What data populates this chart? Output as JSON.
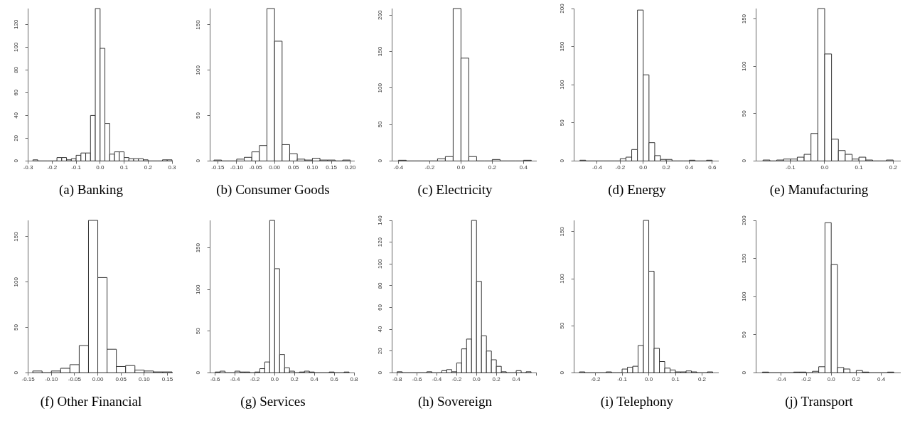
{
  "chart_data": [
    {
      "type": "histogram",
      "title": "(a) Banking",
      "bins": [
        -0.28,
        -0.26,
        -0.24,
        -0.22,
        -0.2,
        -0.18,
        -0.16,
        -0.14,
        -0.12,
        -0.1,
        -0.08,
        -0.06,
        -0.04,
        -0.02,
        0,
        0.02,
        0.04,
        0.06,
        0.08,
        0.1,
        0.12,
        0.14,
        0.16,
        0.18,
        0.2,
        0.22,
        0.24,
        0.26,
        0.28,
        0.3
      ],
      "values": [
        1,
        0,
        0,
        0,
        0,
        3,
        3,
        1,
        2,
        5,
        7,
        7,
        40,
        134,
        99,
        33,
        6,
        8,
        8,
        3,
        2,
        2,
        2,
        1,
        0,
        0,
        0,
        1,
        1
      ],
      "xlim": [
        -0.3,
        0.3
      ],
      "xticks": [
        -0.3,
        -0.2,
        -0.1,
        {
          "value": 0,
          "label": "0.0"
        },
        0.1,
        0.2,
        0.3
      ],
      "ylim": [
        0,
        134
      ],
      "yticks": [
        0,
        20,
        40,
        60,
        80,
        100,
        120
      ]
    },
    {
      "type": "histogram",
      "title": "(b) Consumer Goods",
      "bins": [
        -0.16,
        -0.14,
        -0.12,
        -0.1,
        -0.08,
        -0.06,
        -0.04,
        -0.02,
        0,
        0.02,
        0.04,
        0.06,
        0.08,
        0.1,
        0.12,
        0.14,
        0.16,
        0.18,
        0.2
      ],
      "values": [
        1,
        0,
        0,
        2,
        4,
        10,
        17,
        168,
        132,
        18,
        8,
        2,
        1,
        3,
        1,
        1,
        0,
        1
      ],
      "xlim": [
        -0.17,
        0.21
      ],
      "xticks": [
        -0.15,
        {
          "value": -0.1,
          "label": "-0.10"
        },
        -0.05,
        {
          "value": 0,
          "label": "0.00"
        },
        0.05,
        {
          "value": 0.1,
          "label": "0.10"
        },
        0.15,
        {
          "value": 0.2,
          "label": "0.20"
        }
      ],
      "ylim": [
        0,
        168
      ],
      "yticks": [
        0,
        50,
        100,
        150
      ]
    },
    {
      "type": "histogram",
      "title": "(c) Electricity",
      "bins": [
        -0.4,
        -0.35,
        -0.3,
        -0.25,
        -0.2,
        -0.15,
        -0.1,
        -0.05,
        0,
        0.05,
        0.1,
        0.15,
        0.2,
        0.25,
        0.3,
        0.35,
        0.4,
        0.45
      ],
      "values": [
        1,
        0,
        0,
        0,
        0,
        3,
        6,
        209,
        141,
        6,
        0,
        0,
        2,
        0,
        0,
        0,
        1
      ],
      "xlim": [
        -0.44,
        0.48
      ],
      "xticks": [
        -0.4,
        -0.2,
        {
          "value": 0,
          "label": "0.0"
        },
        0.2,
        0.4
      ],
      "ylim": [
        0,
        209
      ],
      "yticks": [
        0,
        50,
        100,
        150,
        200
      ]
    },
    {
      "type": "histogram",
      "title": "(d) Energy",
      "bins": [
        -0.55,
        -0.5,
        -0.45,
        -0.4,
        -0.35,
        -0.3,
        -0.25,
        -0.2,
        -0.15,
        -0.1,
        -0.05,
        0,
        0.05,
        0.1,
        0.15,
        0.2,
        0.25,
        0.3,
        0.35,
        0.4,
        0.45,
        0.5,
        0.55,
        0.6
      ],
      "values": [
        1,
        0,
        0,
        0,
        0,
        0,
        0,
        3,
        5,
        15,
        198,
        113,
        24,
        7,
        2,
        2,
        0,
        0,
        0,
        1,
        0,
        0,
        1
      ],
      "xlim": [
        -0.6,
        0.65
      ],
      "xticks": [
        -0.4,
        -0.2,
        {
          "value": 0,
          "label": "0.0"
        },
        0.2,
        0.4,
        0.6
      ],
      "ylim": [
        0,
        200
      ],
      "yticks": [
        0,
        50,
        100,
        150,
        200
      ]
    },
    {
      "type": "histogram",
      "title": "(e) Manufacturing",
      "bins": [
        -0.18,
        -0.16,
        -0.14,
        -0.12,
        -0.1,
        -0.08,
        -0.06,
        -0.04,
        -0.02,
        0,
        0.02,
        0.04,
        0.06,
        0.08,
        0.1,
        0.12,
        0.14,
        0.16,
        0.18,
        0.2
      ],
      "values": [
        1,
        0,
        1,
        2,
        2,
        4,
        7,
        29,
        161,
        113,
        23,
        11,
        7,
        2,
        4,
        1,
        0,
        0,
        1
      ],
      "xlim": [
        -0.2,
        0.22
      ],
      "xticks": [
        -0.1,
        {
          "value": 0,
          "label": "0.0"
        },
        0.1,
        0.2
      ],
      "ylim": [
        0,
        161
      ],
      "yticks": [
        0,
        50,
        100,
        150
      ]
    },
    {
      "type": "histogram",
      "title": "(f) Other Financial",
      "bins": [
        -0.14,
        -0.12,
        -0.1,
        -0.08,
        -0.06,
        -0.04,
        -0.02,
        0,
        0.02,
        0.04,
        0.06,
        0.08,
        0.1,
        0.12,
        0.14,
        0.16
      ],
      "values": [
        2,
        0,
        2,
        5,
        9,
        30,
        168,
        105,
        26,
        7,
        8,
        3,
        2,
        1,
        1
      ],
      "xlim": [
        -0.15,
        0.16
      ],
      "xticks": [
        -0.15,
        {
          "value": -0.1,
          "label": "-0.10"
        },
        -0.05,
        {
          "value": 0,
          "label": "0.00"
        },
        0.05,
        {
          "value": 0.1,
          "label": "0.10"
        },
        0.15
      ],
      "ylim": [
        0,
        168
      ],
      "yticks": [
        0,
        50,
        100,
        150
      ]
    },
    {
      "type": "histogram",
      "title": "(g) Services",
      "bins": [
        -0.6,
        -0.55,
        -0.5,
        -0.45,
        -0.4,
        -0.35,
        -0.3,
        -0.25,
        -0.2,
        -0.15,
        -0.1,
        -0.05,
        0,
        0.05,
        0.1,
        0.15,
        0.2,
        0.25,
        0.3,
        0.35,
        0.4,
        0.45,
        0.5,
        0.55,
        0.6,
        0.65,
        0.7,
        0.75
      ],
      "values": [
        1,
        2,
        0,
        0,
        2,
        1,
        1,
        0,
        1,
        5,
        13,
        183,
        125,
        22,
        6,
        2,
        0,
        1,
        2,
        1,
        0,
        0,
        0,
        1,
        0,
        0,
        1
      ],
      "xlim": [
        -0.65,
        0.8
      ],
      "xticks": [
        -0.6,
        -0.4,
        -0.2,
        {
          "value": 0,
          "label": "0.0"
        },
        0.2,
        0.4,
        0.6,
        0.8
      ],
      "ylim": [
        0,
        183
      ],
      "yticks": [
        0,
        50,
        100,
        150
      ]
    },
    {
      "type": "histogram",
      "title": "(h) Sovereign",
      "bins": [
        -0.8,
        -0.75,
        -0.7,
        -0.65,
        -0.6,
        -0.55,
        -0.5,
        -0.45,
        -0.4,
        -0.35,
        -0.3,
        -0.25,
        -0.2,
        -0.15,
        -0.1,
        -0.05,
        0,
        0.05,
        0.1,
        0.15,
        0.2,
        0.25,
        0.3,
        0.35,
        0.4,
        0.45,
        0.5,
        0.55
      ],
      "values": [
        1,
        0,
        0,
        0,
        0,
        0,
        1,
        0,
        0,
        2,
        3,
        1,
        9,
        22,
        31,
        140,
        84,
        34,
        20,
        12,
        6,
        1,
        0,
        0,
        2,
        0,
        1
      ],
      "xlim": [
        -0.85,
        0.6
      ],
      "xticks": [
        -0.8,
        -0.6,
        -0.4,
        -0.2,
        {
          "value": 0,
          "label": "0.0"
        },
        0.2,
        0.4,
        {
          "value": 0.6,
          "label": null
        }
      ],
      "ylim": [
        0,
        140
      ],
      "yticks": [
        0,
        20,
        40,
        60,
        80,
        100,
        120,
        140
      ]
    },
    {
      "type": "histogram",
      "title": "(i) Telephony",
      "bins": [
        -0.26,
        -0.24,
        -0.22,
        -0.2,
        -0.18,
        -0.16,
        -0.14,
        -0.12,
        -0.1,
        -0.08,
        -0.06,
        -0.04,
        -0.02,
        0,
        0.02,
        0.04,
        0.06,
        0.08,
        0.1,
        0.12,
        0.14,
        0.16,
        0.18,
        0.2,
        0.22,
        0.24
      ],
      "values": [
        1,
        0,
        0,
        0,
        0,
        1,
        0,
        0,
        4,
        6,
        7,
        29,
        162,
        108,
        26,
        12,
        5,
        3,
        1,
        1,
        2,
        1,
        0,
        0,
        1
      ],
      "xlim": [
        -0.28,
        0.26
      ],
      "xticks": [
        -0.2,
        -0.1,
        {
          "value": 0,
          "label": "0.0"
        },
        0.1,
        0.2
      ],
      "ylim": [
        0,
        162
      ],
      "yticks": [
        0,
        50,
        100,
        150
      ]
    },
    {
      "type": "histogram",
      "title": "(j) Transport",
      "bins": [
        -0.55,
        -0.5,
        -0.45,
        -0.4,
        -0.35,
        -0.3,
        -0.25,
        -0.2,
        -0.15,
        -0.1,
        -0.05,
        0,
        0.05,
        0.1,
        0.15,
        0.2,
        0.25,
        0.3,
        0.35,
        0.4,
        0.45,
        0.5
      ],
      "values": [
        1,
        0,
        0,
        0,
        0,
        1,
        1,
        0,
        2,
        8,
        197,
        142,
        7,
        5,
        0,
        3,
        1,
        0,
        0,
        0,
        1
      ],
      "xlim": [
        -0.6,
        0.55
      ],
      "xticks": [
        -0.4,
        -0.2,
        {
          "value": 0,
          "label": "0.0"
        },
        0.2,
        0.4
      ],
      "ylim": [
        0,
        200
      ],
      "yticks": [
        0,
        50,
        100,
        150,
        200
      ]
    }
  ]
}
